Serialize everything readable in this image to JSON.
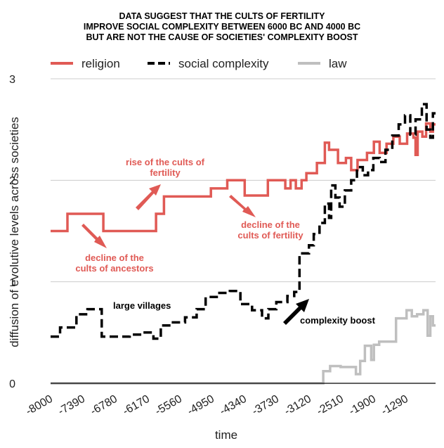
{
  "chart_data": {
    "type": "line",
    "title": [
      "DATA SUGGEST THAT THE CULTS OF FERTILITY",
      "IMPROVE SOCIAL COMPLEXITY BETWEEN 6000 BC AND 4000 BC",
      "BUT ARE NOT THE CAUSE OF SOCIETIES' COMPLEXITY BOOST"
    ],
    "xlabel": "time",
    "ylabel": "diffusion of evolutive levels across societies",
    "xlim": [
      -8000,
      -700
    ],
    "ylim": [
      0,
      3
    ],
    "x_ticks": [
      "-8000",
      "-7390",
      "-6780",
      "-6170",
      "-5560",
      "-4950",
      "-4340",
      "-3730",
      "-3120",
      "-2510",
      "-1900",
      "-1290"
    ],
    "y_ticks": [
      "0",
      "1",
      "2",
      "3"
    ],
    "grid": true,
    "legend_position": "top",
    "series": [
      {
        "name": "religion",
        "color": "#e05a55",
        "style": "solid",
        "points": [
          [
            -8000,
            1.5
          ],
          [
            -7680,
            1.5
          ],
          [
            -7680,
            1.67
          ],
          [
            -7000,
            1.67
          ],
          [
            -7000,
            1.5
          ],
          [
            -6000,
            1.5
          ],
          [
            -6000,
            1.67
          ],
          [
            -5850,
            1.67
          ],
          [
            -5850,
            1.84
          ],
          [
            -4960,
            1.84
          ],
          [
            -4960,
            1.92
          ],
          [
            -4650,
            1.92
          ],
          [
            -4650,
            2.0
          ],
          [
            -4320,
            2.0
          ],
          [
            -4320,
            1.85
          ],
          [
            -3880,
            1.85
          ],
          [
            -3880,
            2.0
          ],
          [
            -3550,
            2.0
          ],
          [
            -3550,
            1.92
          ],
          [
            -3450,
            1.92
          ],
          [
            -3450,
            2.0
          ],
          [
            -3350,
            2.0
          ],
          [
            -3350,
            1.92
          ],
          [
            -3240,
            1.92
          ],
          [
            -3240,
            2.0
          ],
          [
            -3150,
            2.0
          ],
          [
            -3150,
            2.07
          ],
          [
            -2950,
            2.07
          ],
          [
            -2950,
            2.17
          ],
          [
            -2800,
            2.17
          ],
          [
            -2800,
            2.37
          ],
          [
            -2720,
            2.37
          ],
          [
            -2720,
            2.3
          ],
          [
            -2550,
            2.3
          ],
          [
            -2550,
            2.17
          ],
          [
            -2400,
            2.17
          ],
          [
            -2400,
            2.22
          ],
          [
            -2300,
            2.22
          ],
          [
            -2300,
            2.1
          ],
          [
            -2180,
            2.1
          ],
          [
            -2180,
            2.2
          ],
          [
            -2000,
            2.2
          ],
          [
            -2000,
            2.27
          ],
          [
            -1870,
            2.27
          ],
          [
            -1870,
            2.38
          ],
          [
            -1760,
            2.38
          ],
          [
            -1760,
            2.27
          ],
          [
            -1630,
            2.27
          ],
          [
            -1630,
            2.36
          ],
          [
            -1500,
            2.36
          ],
          [
            -1500,
            2.43
          ],
          [
            -1380,
            2.43
          ],
          [
            -1380,
            2.36
          ],
          [
            -1240,
            2.36
          ],
          [
            -1240,
            2.46
          ],
          [
            -1120,
            2.46
          ],
          [
            -1120,
            2.42
          ],
          [
            -1080,
            2.42
          ],
          [
            -1080,
            2.25
          ],
          [
            -1040,
            2.25
          ],
          [
            -1040,
            2.48
          ],
          [
            -950,
            2.48
          ],
          [
            -950,
            2.43
          ],
          [
            -880,
            2.43
          ],
          [
            -880,
            2.56
          ],
          [
            -800,
            2.56
          ],
          [
            -800,
            2.48
          ],
          [
            -750,
            2.48
          ],
          [
            -750,
            2.55
          ],
          [
            -700,
            2.55
          ]
        ]
      },
      {
        "name": "social complexity",
        "color": "#000000",
        "style": "dashed",
        "points": [
          [
            -8000,
            0.46
          ],
          [
            -7820,
            0.46
          ],
          [
            -7820,
            0.55
          ],
          [
            -7510,
            0.55
          ],
          [
            -7510,
            0.68
          ],
          [
            -7300,
            0.68
          ],
          [
            -7300,
            0.73
          ],
          [
            -7030,
            0.73
          ],
          [
            -7030,
            0.46
          ],
          [
            -6500,
            0.46
          ],
          [
            -6500,
            0.48
          ],
          [
            -6280,
            0.48
          ],
          [
            -6280,
            0.5
          ],
          [
            -6050,
            0.5
          ],
          [
            -6050,
            0.44
          ],
          [
            -5910,
            0.44
          ],
          [
            -5910,
            0.57
          ],
          [
            -5720,
            0.57
          ],
          [
            -5720,
            0.6
          ],
          [
            -5450,
            0.6
          ],
          [
            -5450,
            0.65
          ],
          [
            -5230,
            0.65
          ],
          [
            -5230,
            0.73
          ],
          [
            -5060,
            0.73
          ],
          [
            -5060,
            0.85
          ],
          [
            -4850,
            0.85
          ],
          [
            -4850,
            0.89
          ],
          [
            -4600,
            0.89
          ],
          [
            -4600,
            0.91
          ],
          [
            -4400,
            0.91
          ],
          [
            -4400,
            0.78
          ],
          [
            -4180,
            0.78
          ],
          [
            -4180,
            0.72
          ],
          [
            -3990,
            0.72
          ],
          [
            -3990,
            0.64
          ],
          [
            -3870,
            0.64
          ],
          [
            -3870,
            0.73
          ],
          [
            -3720,
            0.73
          ],
          [
            -3720,
            0.8
          ],
          [
            -3510,
            0.8
          ],
          [
            -3510,
            0.86
          ],
          [
            -3380,
            0.86
          ],
          [
            -3380,
            0.9
          ],
          [
            -3280,
            0.9
          ],
          [
            -3280,
            1.28
          ],
          [
            -3100,
            1.28
          ],
          [
            -3100,
            1.36
          ],
          [
            -3010,
            1.36
          ],
          [
            -3010,
            1.47
          ],
          [
            -2900,
            1.47
          ],
          [
            -2900,
            1.58
          ],
          [
            -2800,
            1.58
          ],
          [
            -2800,
            1.77
          ],
          [
            -2720,
            1.77
          ],
          [
            -2720,
            1.63
          ],
          [
            -2680,
            1.63
          ],
          [
            -2680,
            1.95
          ],
          [
            -2600,
            1.95
          ],
          [
            -2600,
            1.83
          ],
          [
            -2520,
            1.83
          ],
          [
            -2520,
            1.74
          ],
          [
            -2420,
            1.74
          ],
          [
            -2420,
            1.9
          ],
          [
            -2300,
            1.9
          ],
          [
            -2300,
            2.0
          ],
          [
            -2190,
            2.0
          ],
          [
            -2190,
            2.13
          ],
          [
            -2080,
            2.13
          ],
          [
            -2080,
            2.05
          ],
          [
            -1980,
            2.05
          ],
          [
            -1980,
            2.1
          ],
          [
            -1880,
            2.1
          ],
          [
            -1880,
            2.22
          ],
          [
            -1760,
            2.22
          ],
          [
            -1760,
            2.18
          ],
          [
            -1650,
            2.18
          ],
          [
            -1650,
            2.3
          ],
          [
            -1520,
            2.3
          ],
          [
            -1520,
            2.44
          ],
          [
            -1400,
            2.44
          ],
          [
            -1400,
            2.55
          ],
          [
            -1280,
            2.55
          ],
          [
            -1280,
            2.64
          ],
          [
            -1180,
            2.64
          ],
          [
            -1180,
            2.45
          ],
          [
            -1080,
            2.45
          ],
          [
            -1080,
            2.6
          ],
          [
            -960,
            2.6
          ],
          [
            -960,
            2.75
          ],
          [
            -870,
            2.75
          ],
          [
            -870,
            2.5
          ],
          [
            -800,
            2.5
          ],
          [
            -800,
            2.42
          ],
          [
            -750,
            2.42
          ],
          [
            -750,
            2.66
          ],
          [
            -700,
            2.66
          ]
        ]
      },
      {
        "name": "law",
        "color": "#bfbfbf",
        "style": "solid",
        "points": [
          [
            -8000,
            0.0
          ],
          [
            -2830,
            0.0
          ],
          [
            -2830,
            0.12
          ],
          [
            -2700,
            0.12
          ],
          [
            -2700,
            0.17
          ],
          [
            -2500,
            0.17
          ],
          [
            -2500,
            0.16
          ],
          [
            -2210,
            0.16
          ],
          [
            -2210,
            0.09
          ],
          [
            -2130,
            0.09
          ],
          [
            -2130,
            0.22
          ],
          [
            -2040,
            0.22
          ],
          [
            -2040,
            0.37
          ],
          [
            -1920,
            0.37
          ],
          [
            -1920,
            0.23
          ],
          [
            -1870,
            0.23
          ],
          [
            -1870,
            0.38
          ],
          [
            -1770,
            0.38
          ],
          [
            -1770,
            0.41
          ],
          [
            -1450,
            0.41
          ],
          [
            -1450,
            0.64
          ],
          [
            -1250,
            0.64
          ],
          [
            -1250,
            0.72
          ],
          [
            -1150,
            0.72
          ],
          [
            -1150,
            0.66
          ],
          [
            -1050,
            0.66
          ],
          [
            -1050,
            0.68
          ],
          [
            -930,
            0.68
          ],
          [
            -930,
            0.72
          ],
          [
            -850,
            0.72
          ],
          [
            -850,
            0.47
          ],
          [
            -800,
            0.47
          ],
          [
            -800,
            0.66
          ],
          [
            -750,
            0.66
          ],
          [
            -750,
            0.57
          ],
          [
            -700,
            0.57
          ]
        ]
      }
    ],
    "annotations": [
      {
        "lines": [
          "rise of the cults of",
          "fertility"
        ],
        "color": "red"
      },
      {
        "lines": [
          "decline of the",
          "cults of fertility"
        ],
        "color": "red"
      },
      {
        "lines": [
          "decline of the",
          "cults of ancestors"
        ],
        "color": "red"
      },
      {
        "lines": [
          "large villages"
        ],
        "color": "black"
      },
      {
        "lines": [
          "complexity boost"
        ],
        "color": "black"
      }
    ]
  }
}
